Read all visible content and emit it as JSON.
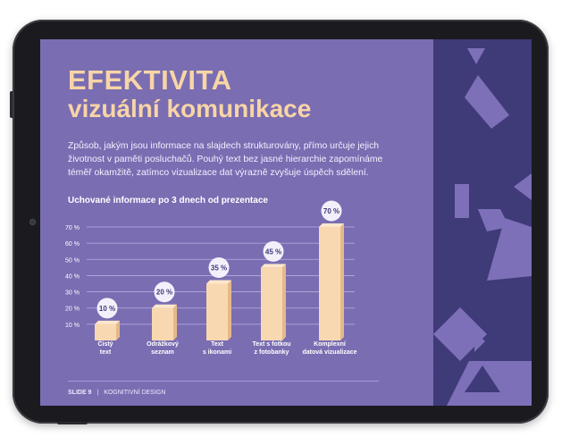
{
  "slide": {
    "title_line1": "EFEKTIVITA",
    "title_line2": "vizuální komunikace",
    "paragraph": "Způsob, jakým jsou informace na slajdech strukturovány, přímo určuje jejich životnost v paměti posluchačů. Pouhý text bez jasné hierarchie zapomínáme téměř okamžitě, zatímco vizualizace dat výrazně zvyšuje úspěch sdělení.",
    "chart_title": "Uchované informace po 3 dnech od prezentace",
    "footer_slide": "SLIDE 9",
    "footer_sep": "|",
    "footer_topic": "KOGNITIVNÍ DESIGN"
  },
  "colors": {
    "background": "#7a6db2",
    "decor_dark": "#3f3a78",
    "decor_light": "#7d70b8",
    "title": "#f8d5a6",
    "bar": "#f8d8b0",
    "bar_side": "#e5b988",
    "bar_top": "#fce7cc",
    "badge_bg": "#f3f0fb",
    "badge_text": "#3f3a78"
  },
  "chart_data": {
    "type": "bar",
    "title": "Uchované informace po 3 dnech od prezentace",
    "categories": [
      [
        "Čistý",
        "text"
      ],
      [
        "Odrážkový",
        "seznam"
      ],
      [
        "Text",
        "s ikonami"
      ],
      [
        "Text s fotkou",
        "z fotobanky"
      ],
      [
        "Komplexní",
        "datová vizualizace"
      ]
    ],
    "values": [
      10,
      20,
      35,
      45,
      70
    ],
    "value_labels": [
      "10 %",
      "20 %",
      "35 %",
      "45 %",
      "70 %"
    ],
    "yticks": [
      10,
      20,
      30,
      40,
      50,
      60,
      70
    ],
    "ytick_labels": [
      "10 %",
      "20 %",
      "30 %",
      "40 %",
      "50 %",
      "60 %",
      "70 %"
    ],
    "ylim": [
      0,
      70
    ],
    "grid": true,
    "legend": "none"
  }
}
